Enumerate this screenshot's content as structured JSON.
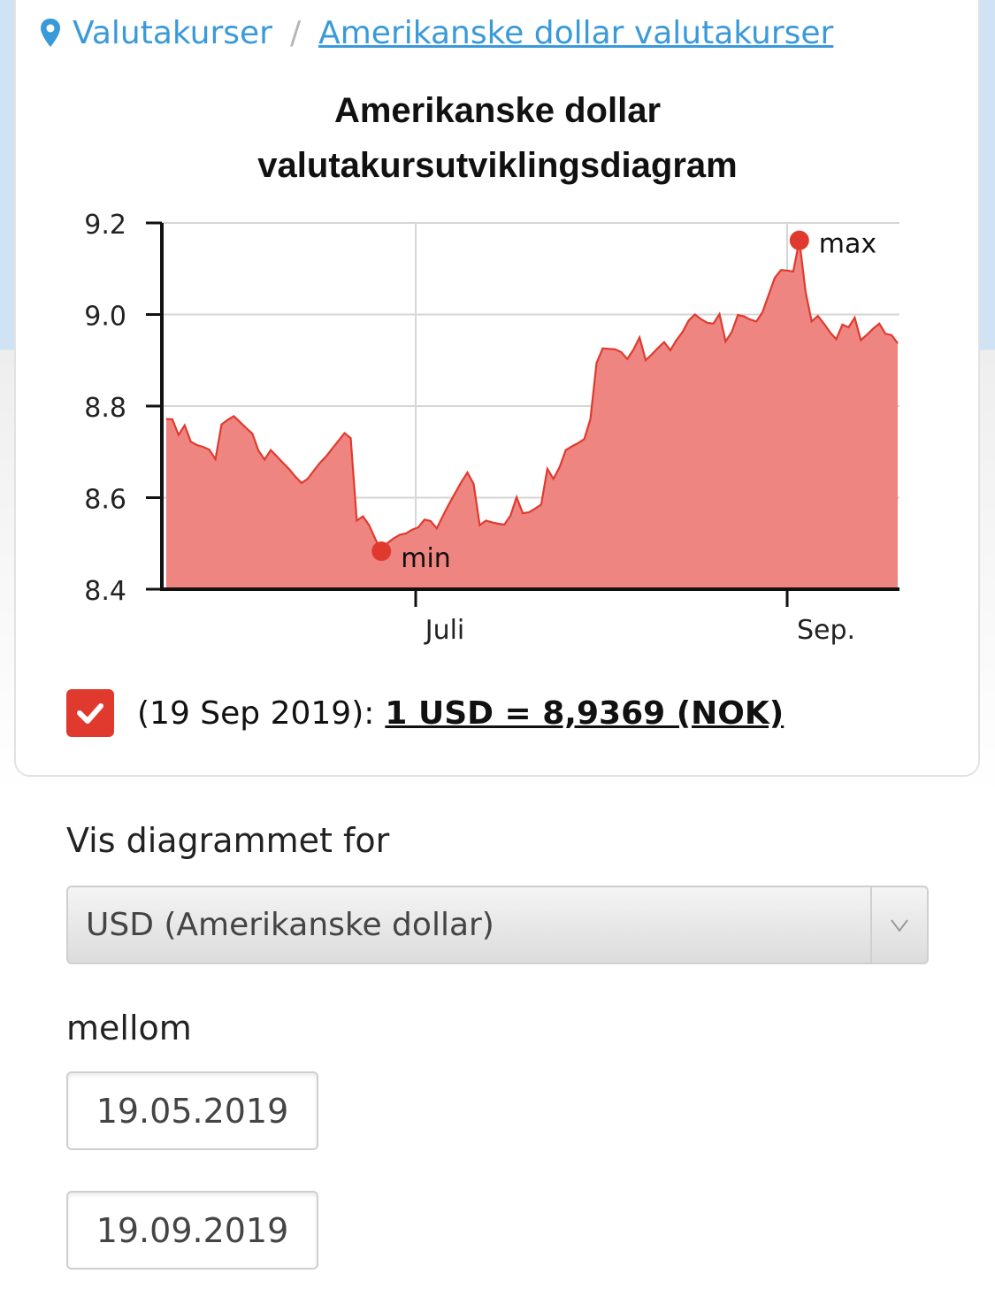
{
  "breadcrumb": {
    "root": "Valutakurser",
    "separator": "/",
    "current": "Amerikanske dollar valutakurser"
  },
  "chart": {
    "title_line1": "Amerikanske dollar",
    "title_line2": "valutakursutviklingsdiagram"
  },
  "chart_data": {
    "type": "area",
    "title": "Amerikanske dollar valutakursutviklingsdiagram",
    "ylim": [
      8.4,
      9.2
    ],
    "yticks": [
      "9.2",
      "9.0",
      "8.8",
      "8.6",
      "8.4"
    ],
    "xticks": [
      "Juli",
      "Sep."
    ],
    "x_start": "19.05.2019",
    "x_end": "19.09.2019",
    "grid": true,
    "annotations": [
      "min",
      "max"
    ],
    "color": "#e03a2e",
    "fill": "#ee8580",
    "values": [
      8.772,
      8.771,
      8.737,
      8.758,
      8.722,
      8.715,
      8.711,
      8.705,
      8.684,
      8.76,
      8.77,
      8.778,
      8.765,
      8.752,
      8.74,
      8.703,
      8.683,
      8.704,
      8.69,
      8.676,
      8.662,
      8.646,
      8.632,
      8.641,
      8.659,
      8.676,
      8.69,
      8.707,
      8.724,
      8.741,
      8.73,
      8.55,
      8.559,
      8.54,
      8.51,
      8.483,
      8.501,
      8.511,
      8.519,
      8.522,
      8.53,
      8.535,
      8.552,
      8.549,
      8.533,
      8.56,
      8.586,
      8.61,
      8.634,
      8.655,
      8.63,
      8.54,
      8.55,
      8.546,
      8.543,
      8.541,
      8.561,
      8.601,
      8.566,
      8.568,
      8.576,
      8.585,
      8.663,
      8.641,
      8.667,
      8.704,
      8.712,
      8.719,
      8.728,
      8.771,
      8.894,
      8.926,
      8.925,
      8.924,
      8.918,
      8.903,
      8.923,
      8.95,
      8.9,
      8.913,
      8.927,
      8.94,
      8.922,
      8.944,
      8.962,
      8.987,
      9.0,
      8.99,
      8.982,
      8.98,
      9.001,
      8.941,
      8.962,
      8.999,
      8.996,
      8.989,
      8.985,
      9.005,
      9.043,
      9.08,
      9.097,
      9.096,
      9.094,
      9.162,
      9.05,
      8.985,
      8.997,
      8.98,
      8.961,
      8.946,
      8.978,
      8.972,
      8.993,
      8.944,
      8.956,
      8.969,
      8.98,
      8.958,
      8.955,
      8.937
    ],
    "min": {
      "label": "min",
      "value": 8.483
    },
    "max": {
      "label": "max",
      "value": 9.162
    }
  },
  "rate": {
    "date": "(19 Sep 2019):",
    "value": "1 USD = 8,9369 (NOK)"
  },
  "controls": {
    "show_label": "Vis diagrammet for",
    "currency_selected": "USD (Amerikanske dollar)",
    "between_label": "mellom",
    "date_from": "19.05.2019",
    "date_to": "19.09.2019"
  }
}
